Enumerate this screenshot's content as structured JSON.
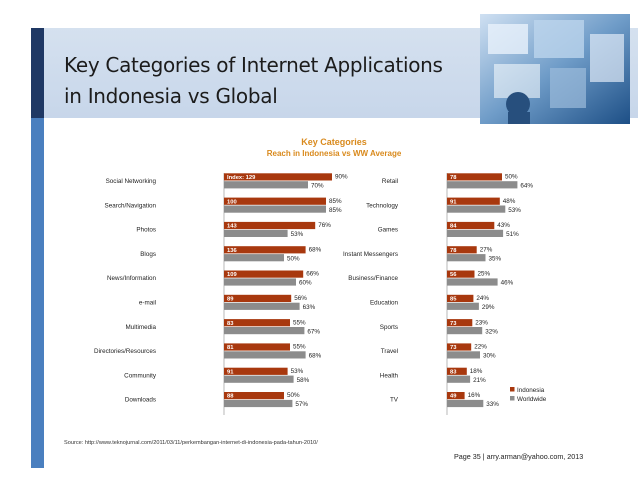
{
  "slide": {
    "title_line1": "Key Categories of Internet Applications",
    "title_line2": "in Indonesia vs Global",
    "source": "Source: http://www.teknojurnal.com/2011/03/11/perkembangan-internet-di-indonesia-pada-tahun-2010/",
    "footer": "Page 35  |  arry.arman@yahoo.com, 2013"
  },
  "colors": {
    "indonesia": "#a8380e",
    "worldwide": "#8c8c8c",
    "title_accent": "#d98a1d"
  },
  "chart_data": {
    "type": "bar",
    "title": "Key Categories",
    "subtitle": "Reach in Indonesia vs WW Average",
    "orientation": "horizontal",
    "xlim": [
      0,
      100
    ],
    "legend": {
      "placement": "bottom-right",
      "entries": [
        "Indonesia",
        "Worldwide"
      ]
    },
    "panels": [
      {
        "categories": [
          "Social Networking",
          "Search/Navigation",
          "Photos",
          "Blogs",
          "News/Information",
          "e-mail",
          "Multimedia",
          "Directories/Resources",
          "Community",
          "Downloads"
        ],
        "index_labels": [
          "Index: 129",
          "100",
          "143",
          "136",
          "109",
          "89",
          "83",
          "81",
          "91",
          "88"
        ],
        "series": [
          {
            "name": "Indonesia",
            "values": [
              90,
              85,
              76,
              68,
              66,
              56,
              55,
              55,
              53,
              50
            ]
          },
          {
            "name": "Worldwide",
            "values": [
              70,
              85,
              53,
              50,
              60,
              63,
              67,
              68,
              58,
              57
            ]
          }
        ]
      },
      {
        "categories": [
          "Retail",
          "Technology",
          "Games",
          "Instant Messengers",
          "Business/Finance",
          "Education",
          "Sports",
          "Travel",
          "Health",
          "TV"
        ],
        "index_labels": [
          "78",
          "91",
          "84",
          "78",
          "56",
          "85",
          "73",
          "73",
          "83",
          "49"
        ],
        "series": [
          {
            "name": "Indonesia",
            "values": [
              50,
              48,
              43,
              27,
              25,
              24,
              23,
              22,
              18,
              16
            ]
          },
          {
            "name": "Worldwide",
            "values": [
              64,
              53,
              51,
              35,
              46,
              29,
              32,
              30,
              21,
              33
            ]
          }
        ]
      }
    ]
  }
}
